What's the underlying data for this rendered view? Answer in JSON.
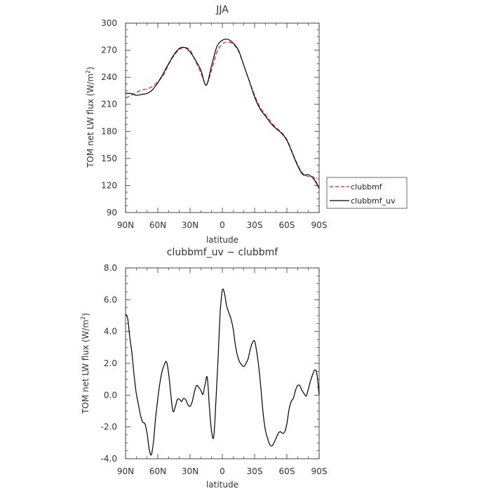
{
  "chart_data": [
    {
      "type": "line",
      "title": "JJA",
      "xlabel": "latitude",
      "ylabel": "TOM net LW flux (W/m",
      "ylabel_sup": "2",
      "ylabel_end": ")",
      "xlim": [
        90,
        -90
      ],
      "ylim": [
        90,
        300
      ],
      "yticks": [
        90,
        120,
        150,
        180,
        210,
        240,
        270,
        300
      ],
      "ytick_labels": [
        "90",
        "120",
        "150",
        "180",
        "210",
        "240",
        "270",
        "300"
      ],
      "xticks": [
        90,
        60,
        30,
        0,
        -30,
        -60,
        -90
      ],
      "xtick_labels": [
        "90N",
        "60N",
        "30N",
        "0",
        "30S",
        "60S",
        "90S"
      ],
      "legend": {
        "placement": "right",
        "entries": [
          "clubbmf",
          "clubbmf_uv"
        ]
      },
      "series": [
        {
          "name": "clubbmf",
          "color": "#e02020",
          "dash": "dashed",
          "x": [
            90,
            85,
            80,
            75,
            70,
            65,
            60,
            55,
            50,
            45,
            40,
            35,
            30,
            25,
            20,
            15,
            10,
            5,
            0,
            -5,
            -10,
            -15,
            -20,
            -25,
            -30,
            -35,
            -40,
            -45,
            -50,
            -55,
            -60,
            -65,
            -70,
            -75,
            -80,
            -85,
            -90
          ],
          "y": [
            217,
            220,
            223,
            226,
            227,
            230,
            235,
            242,
            254,
            264,
            271,
            273,
            270,
            258,
            245,
            232,
            248,
            268,
            277,
            279,
            277,
            269,
            253,
            236,
            220,
            207,
            199,
            191,
            184,
            179,
            171,
            157,
            143,
            133,
            130,
            129,
            116
          ]
        },
        {
          "name": "clubbmf_uv",
          "color": "#000000",
          "dash": "solid",
          "x": [
            90,
            85,
            80,
            75,
            70,
            65,
            60,
            55,
            50,
            45,
            40,
            35,
            30,
            25,
            20,
            15,
            10,
            5,
            0,
            -5,
            -10,
            -15,
            -20,
            -25,
            -30,
            -35,
            -40,
            -45,
            -50,
            -55,
            -60,
            -65,
            -70,
            -75,
            -80,
            -85,
            -90
          ],
          "y": [
            222,
            222,
            220,
            221,
            222,
            226,
            234,
            244,
            255,
            265,
            272,
            273,
            268,
            259,
            248,
            231,
            253,
            274,
            281,
            282,
            278,
            270,
            253,
            236,
            218,
            205,
            197,
            189,
            183,
            178,
            170,
            156,
            142,
            132,
            132,
            127,
            117
          ]
        }
      ]
    },
    {
      "type": "line",
      "title": "clubbmf_uv − clubbmf",
      "xlabel": "latitude",
      "ylabel": "TOM net LW flux (W/m",
      "ylabel_sup": "2",
      "ylabel_end": ")",
      "xlim": [
        90,
        -90
      ],
      "ylim": [
        -4,
        8
      ],
      "yticks": [
        -4,
        -2,
        0,
        2,
        4,
        6,
        8
      ],
      "ytick_labels": [
        "-4.0",
        "-2.0",
        "0.0",
        "2.0",
        "4.0",
        "6.0",
        "8.0"
      ],
      "xticks": [
        90,
        60,
        30,
        0,
        -30,
        -60,
        -90
      ],
      "xtick_labels": [
        "90N",
        "60N",
        "30N",
        "0",
        "30S",
        "60S",
        "90S"
      ],
      "series": [
        {
          "color": "#000000",
          "dash": "solid",
          "x": [
            90,
            88,
            86,
            84,
            82,
            80,
            78,
            76,
            74,
            72,
            70,
            68,
            66,
            64,
            62,
            60,
            58,
            56,
            54,
            52,
            50,
            48,
            46,
            44,
            42,
            40,
            38,
            36,
            34,
            32,
            30,
            28,
            26,
            24,
            22,
            20,
            18,
            16,
            14,
            12,
            10,
            8,
            6,
            4,
            2,
            0,
            -2,
            -4,
            -6,
            -8,
            -10,
            -12,
            -14,
            -16,
            -18,
            -20,
            -22,
            -24,
            -26,
            -28,
            -30,
            -32,
            -34,
            -36,
            -38,
            -40,
            -42,
            -44,
            -46,
            -48,
            -50,
            -52,
            -54,
            -56,
            -58,
            -60,
            -62,
            -64,
            -66,
            -68,
            -70,
            -72,
            -74,
            -76,
            -78,
            -80,
            -82,
            -84,
            -86,
            -88,
            -90
          ],
          "y": [
            5.1,
            4.8,
            3.6,
            2.6,
            1.2,
            0.1,
            -0.6,
            -1.3,
            -1.7,
            -1.8,
            -2.4,
            -3.4,
            -3.75,
            -2.9,
            -1.4,
            -0.2,
            0.8,
            1.5,
            1.9,
            2.1,
            1.4,
            0.1,
            -1.0,
            -0.8,
            -0.3,
            -0.25,
            -0.4,
            -0.2,
            -0.3,
            -0.6,
            -0.7,
            -0.4,
            0.2,
            0.6,
            0.5,
            0.3,
            0.05,
            0.7,
            1.1,
            -0.8,
            -2.3,
            -2.6,
            -0.4,
            2.3,
            5.2,
            6.6,
            6.4,
            5.6,
            5.2,
            4.8,
            4.2,
            3.2,
            2.5,
            2.1,
            1.9,
            1.8,
            2.0,
            2.3,
            2.9,
            3.3,
            3.4,
            2.7,
            1.7,
            0.3,
            -1.2,
            -2.2,
            -2.7,
            -3.1,
            -3.2,
            -3.0,
            -2.7,
            -2.4,
            -2.3,
            -2.4,
            -2.3,
            -1.8,
            -0.9,
            -0.4,
            -0.2,
            0.3,
            0.6,
            0.6,
            0.3,
            0.1,
            -0.05,
            0.4,
            0.9,
            1.3,
            1.6,
            1.3,
            0.0
          ]
        }
      ]
    }
  ]
}
